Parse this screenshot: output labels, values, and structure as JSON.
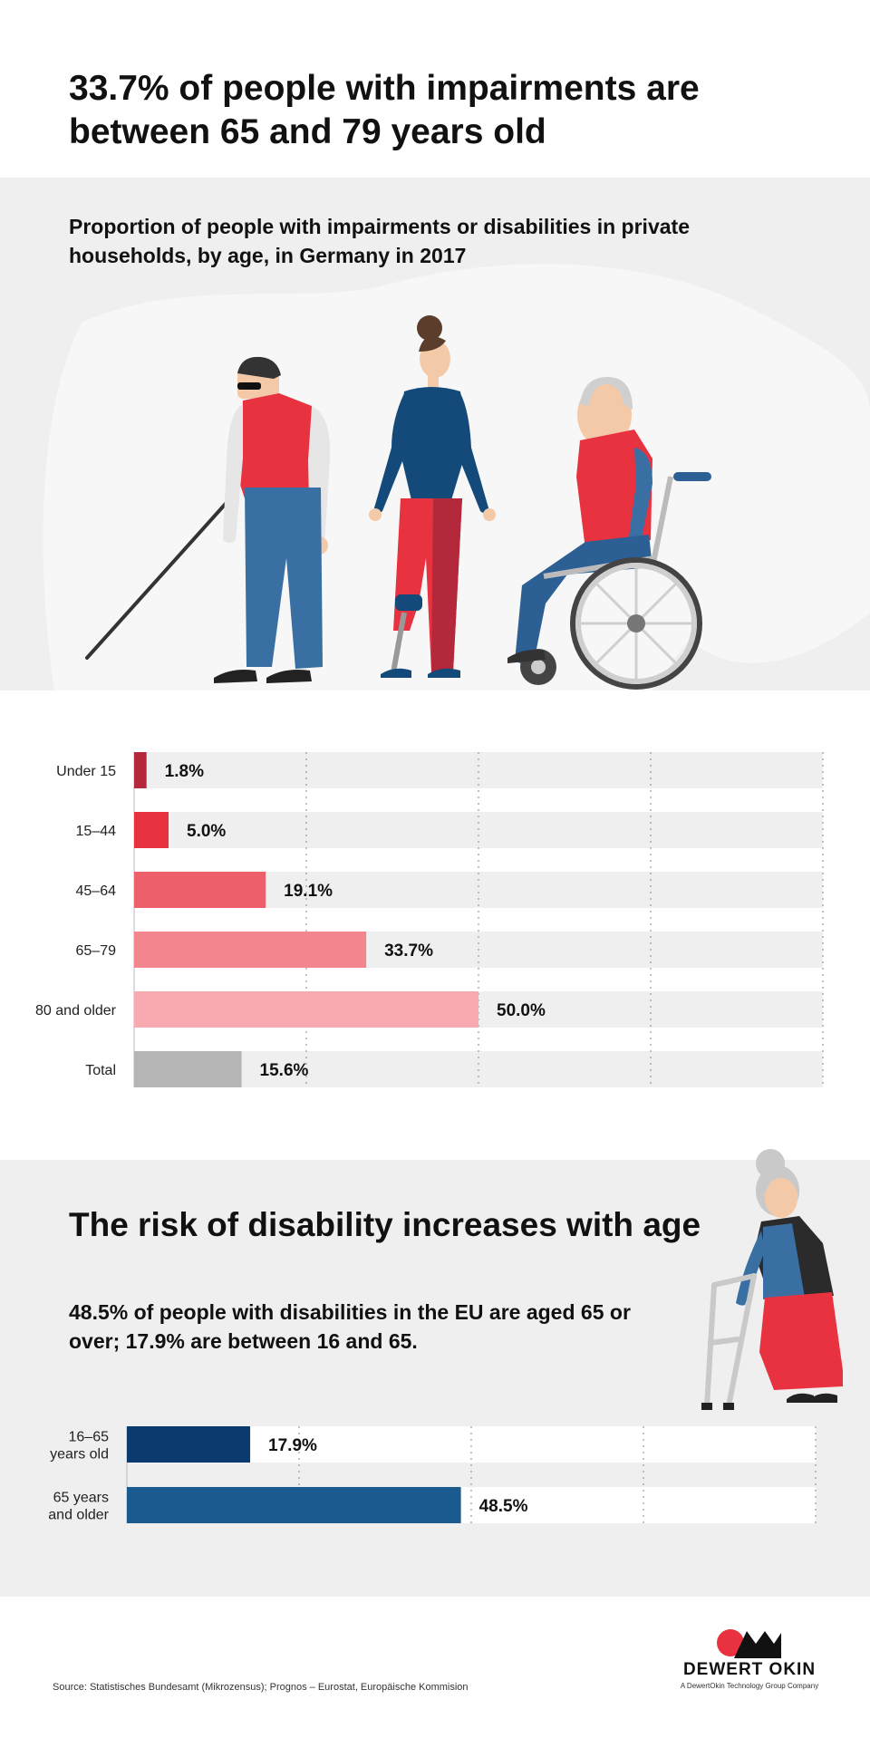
{
  "headline": "33.7% of people with impairments are between 65 and 79 years old",
  "hero": {
    "subtitle": "Proportion of people with impairments or disabilities in private households, by age, in Germany in 2017"
  },
  "risk": {
    "title": "The risk of disability increases with age",
    "subtitle": "48.5% of people with disabilities in the EU are aged 65 or over; 17.9% are between 16 and 65."
  },
  "chart_data": [
    {
      "type": "bar",
      "orientation": "horizontal",
      "title": "Proportion of people with impairments or disabilities in private households, by age, in Germany in 2017",
      "categories": [
        "Under 15",
        "15–44",
        "45–64",
        "65–79",
        "80 and older",
        "Total"
      ],
      "values": [
        1.8,
        5.0,
        19.1,
        33.7,
        50.0,
        15.6
      ],
      "value_labels": [
        "1.8%",
        "5.0%",
        "19.1%",
        "33.7%",
        "50.0%",
        "15.6%"
      ],
      "bar_colors": [
        "#b3283a",
        "#e8323f",
        "#ee5f6c",
        "#f2858e",
        "#f7aab0",
        "#b5b5b5"
      ],
      "track_color": "#efefef",
      "xlim": [
        0,
        100
      ],
      "grid": true,
      "unit": "%"
    },
    {
      "type": "bar",
      "orientation": "horizontal",
      "categories": [
        [
          "16–65",
          "years old"
        ],
        [
          "65 years",
          "and older"
        ]
      ],
      "values": [
        17.9,
        48.5
      ],
      "value_labels": [
        "17.9%",
        "48.5%"
      ],
      "bar_colors": [
        "#0b3a6e",
        "#1a5a8e"
      ],
      "track_color": "#ffffff",
      "xlim": [
        0,
        100
      ],
      "grid": true,
      "unit": "%"
    }
  ],
  "footer": {
    "source": "Source: Statistisches Bundesamt (Mikrozensus); Prognos – Eurostat, Europäische Kommision",
    "logo_name": "DEWERT OKIN",
    "logo_tagline": "A DewertOkin Technology Group Company"
  },
  "colors": {
    "red": "#e8323f",
    "navy": "#0b3a6e",
    "panel_grey": "#efefef"
  }
}
